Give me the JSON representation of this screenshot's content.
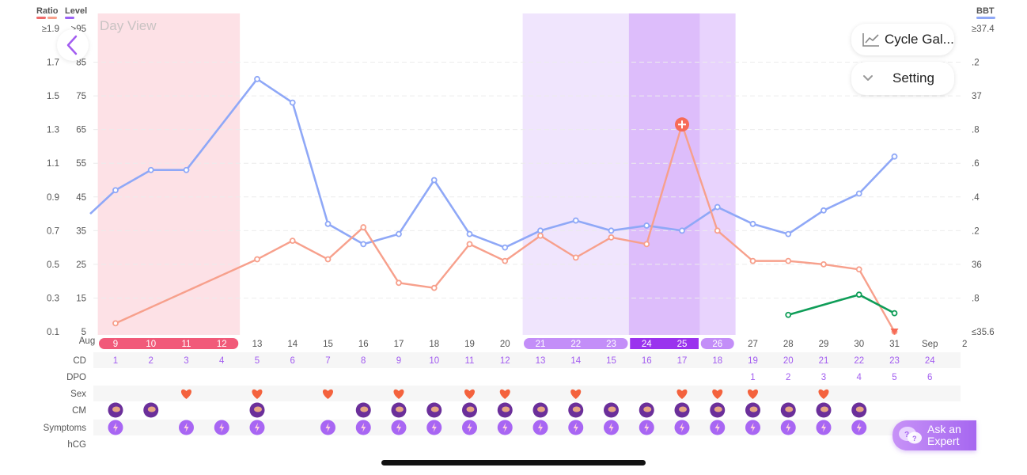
{
  "header": {
    "ratio_label": "Ratio",
    "level_label": "Level",
    "bbt_label": "BBT",
    "day_view": "Day View",
    "ratio_color": "#ef6a6a",
    "level_color": "#9b62f5",
    "bbt_color": "#8fa8f7"
  },
  "controls": {
    "cycle_gallery": "Cycle Gal...",
    "setting": "Setting",
    "ask_expert_line1": "Ask an",
    "ask_expert_line2": "Expert"
  },
  "chart_data": {
    "type": "line",
    "title": "Day View",
    "ratio_ticks": [
      "≥1.9",
      "1.7",
      "1.5",
      "1.3",
      "1.1",
      "0.9",
      "0.7",
      "0.5",
      "0.3",
      "0.1"
    ],
    "level_ticks": [
      ">95",
      "85",
      "75",
      "65",
      "55",
      "45",
      "35",
      "25",
      "15",
      "5"
    ],
    "bbt_ticks": [
      "≥37.4",
      ".2",
      "37",
      ".8",
      ".6",
      ".4",
      ".2",
      "36",
      ".8",
      "≤35.6"
    ],
    "dates": [
      {
        "label": "9",
        "month": "Aug",
        "cd": "1",
        "dpo": "",
        "zone": "period"
      },
      {
        "label": "10",
        "cd": "2",
        "dpo": "",
        "zone": "period"
      },
      {
        "label": "11",
        "cd": "3",
        "dpo": "",
        "zone": "period"
      },
      {
        "label": "12",
        "cd": "4",
        "dpo": "",
        "zone": "period"
      },
      {
        "label": "13",
        "cd": "5",
        "dpo": "",
        "zone": ""
      },
      {
        "label": "14",
        "cd": "6",
        "dpo": "",
        "zone": ""
      },
      {
        "label": "15",
        "cd": "7",
        "dpo": "",
        "zone": ""
      },
      {
        "label": "16",
        "cd": "8",
        "dpo": "",
        "zone": ""
      },
      {
        "label": "17",
        "cd": "9",
        "dpo": "",
        "zone": ""
      },
      {
        "label": "18",
        "cd": "10",
        "dpo": "",
        "zone": ""
      },
      {
        "label": "19",
        "cd": "11",
        "dpo": "",
        "zone": ""
      },
      {
        "label": "20",
        "cd": "12",
        "dpo": "",
        "zone": ""
      },
      {
        "label": "21",
        "cd": "13",
        "dpo": "",
        "zone": "fertile"
      },
      {
        "label": "22",
        "cd": "14",
        "dpo": "",
        "zone": "fertile"
      },
      {
        "label": "23",
        "cd": "15",
        "dpo": "",
        "zone": "fertile"
      },
      {
        "label": "24",
        "cd": "16",
        "dpo": "",
        "zone": "peak"
      },
      {
        "label": "25",
        "cd": "17",
        "dpo": "",
        "zone": "peak"
      },
      {
        "label": "26",
        "cd": "18",
        "dpo": "",
        "zone": "fertile"
      },
      {
        "label": "27",
        "cd": "19",
        "dpo": "1",
        "zone": ""
      },
      {
        "label": "28",
        "cd": "20",
        "dpo": "2",
        "zone": ""
      },
      {
        "label": "29",
        "cd": "21",
        "dpo": "3",
        "zone": ""
      },
      {
        "label": "30",
        "cd": "22",
        "dpo": "4",
        "zone": ""
      },
      {
        "label": "31",
        "cd": "23",
        "dpo": "5",
        "zone": ""
      },
      {
        "label": "2",
        "month": "Sep",
        "cd": "24",
        "dpo": "6",
        "zone": ""
      }
    ],
    "row_labels": [
      "CD",
      "DPO",
      "Sex",
      "CM",
      "Symptoms",
      "hCG"
    ],
    "series": [
      {
        "name": "Level",
        "color": "#8fa8f7",
        "start_value": 40,
        "values": [
          47,
          53,
          53,
          null,
          80,
          73,
          37,
          31,
          34,
          50,
          34,
          30,
          35,
          38,
          35,
          36.5,
          35,
          42,
          37,
          34,
          41,
          46,
          57,
          null
        ]
      },
      {
        "name": "Ratio",
        "color": "#f7a08c",
        "values": [
          0.15,
          null,
          null,
          null,
          0.53,
          0.64,
          0.53,
          0.72,
          0.39,
          0.36,
          0.62,
          0.52,
          0.67,
          0.54,
          0.66,
          0.62,
          1.33,
          0.7,
          0.52,
          0.52,
          0.5,
          0.47,
          0.1,
          null
        ]
      },
      {
        "name": "BBT",
        "color": "#0f9d58",
        "values": [
          null,
          null,
          null,
          null,
          null,
          null,
          null,
          null,
          null,
          null,
          null,
          null,
          null,
          null,
          null,
          null,
          null,
          null,
          null,
          35.7,
          null,
          35.82,
          35.71,
          null
        ]
      }
    ],
    "peak_marker_index": 16,
    "sex_days": [
      2,
      4,
      6,
      8,
      10,
      11,
      13,
      16,
      17,
      18,
      20
    ],
    "sex_icon": [
      "heart-icon",
      "heart-icon",
      "heart-icon",
      "heart-icon",
      "heart-icon",
      "heart-icon",
      "heart-icon",
      "heart-icon",
      "heart-icon",
      "heart-icon",
      "heart-icon"
    ],
    "cm_days": [
      0,
      1,
      4,
      7,
      8,
      9,
      10,
      11,
      12,
      13,
      14,
      15,
      16,
      17,
      18,
      19,
      20,
      21
    ],
    "symptom_days": [
      0,
      2,
      3,
      4,
      6,
      7,
      8,
      9,
      10,
      11,
      12,
      13,
      14,
      15,
      16,
      17,
      18,
      19,
      20,
      21
    ]
  }
}
